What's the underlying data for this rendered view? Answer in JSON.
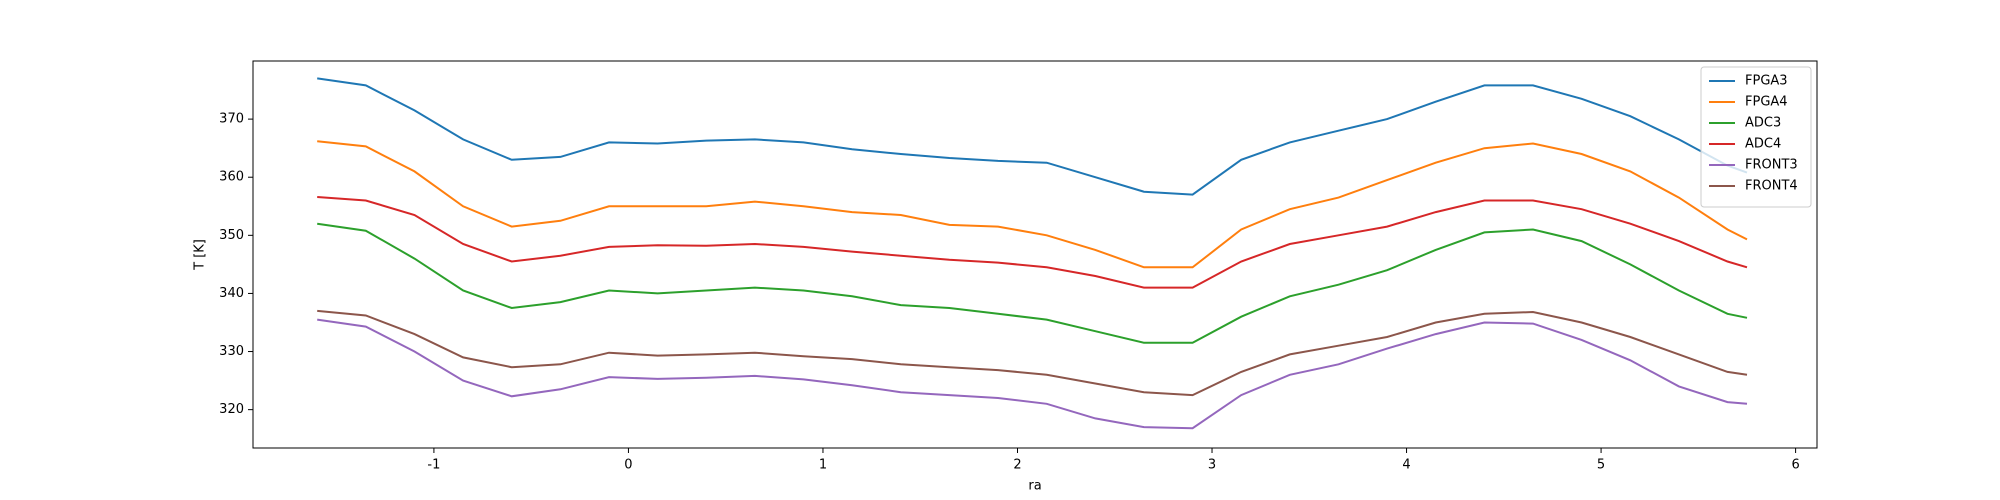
{
  "chart_data": {
    "type": "line",
    "xlabel": "ra",
    "ylabel": "T [K]",
    "x": [
      -1.6,
      -1.35,
      -1.1,
      -0.85,
      -0.6,
      -0.35,
      -0.1,
      0.15,
      0.4,
      0.65,
      0.9,
      1.15,
      1.4,
      1.65,
      1.9,
      2.15,
      2.4,
      2.65,
      2.9,
      3.15,
      3.4,
      3.65,
      3.9,
      4.15,
      4.4,
      4.65,
      4.9,
      5.15,
      5.4,
      5.65,
      5.75
    ],
    "series": [
      {
        "name": "FPGA3",
        "color": "#1f77b4",
        "values": [
          377,
          375.8,
          371.5,
          366.5,
          363,
          363.5,
          366,
          365.8,
          366.3,
          366.5,
          366,
          364.8,
          364,
          363.3,
          362.8,
          362.5,
          360,
          357.5,
          357,
          363,
          366,
          368,
          370,
          373,
          375.8,
          375.8,
          373.5,
          370.5,
          366.5,
          362,
          360.8
        ]
      },
      {
        "name": "FPGA4",
        "color": "#ff7f0e",
        "values": [
          366.2,
          365.3,
          361,
          355,
          351.5,
          352.5,
          355,
          355,
          355,
          355.8,
          355,
          354,
          353.5,
          351.8,
          351.5,
          350,
          347.5,
          344.5,
          344.5,
          351,
          354.5,
          356.5,
          359.5,
          362.5,
          365,
          365.8,
          364,
          361,
          356.5,
          351,
          349.3
        ]
      },
      {
        "name": "ADC3",
        "color": "#2ca02c",
        "values": [
          352,
          350.8,
          346,
          340.5,
          337.5,
          338.5,
          340.5,
          340,
          340.5,
          341,
          340.5,
          339.5,
          338,
          337.5,
          336.5,
          335.5,
          333.5,
          331.5,
          331.5,
          336,
          339.5,
          341.5,
          344,
          347.5,
          350.5,
          351,
          349,
          345,
          340.5,
          336.5,
          335.8
        ]
      },
      {
        "name": "ADC4",
        "color": "#d62728",
        "values": [
          356.6,
          356,
          353.5,
          348.5,
          345.5,
          346.5,
          348,
          348.3,
          348.2,
          348.5,
          348,
          347.2,
          346.5,
          345.8,
          345.3,
          344.5,
          343,
          341,
          341,
          345.5,
          348.5,
          350,
          351.5,
          354,
          356,
          356,
          354.5,
          352,
          349,
          345.5,
          344.5
        ]
      },
      {
        "name": "FRONT3",
        "color": "#9467bd",
        "values": [
          335.5,
          334.3,
          330,
          325,
          322.3,
          323.5,
          325.6,
          325.3,
          325.5,
          325.8,
          325.2,
          324.2,
          323,
          322.5,
          322,
          321,
          318.5,
          317,
          316.8,
          322.5,
          326,
          327.8,
          330.5,
          333,
          335,
          334.8,
          332,
          328.5,
          324,
          321.3,
          321
        ]
      },
      {
        "name": "FRONT4",
        "color": "#8c564b",
        "values": [
          337,
          336.2,
          333,
          329,
          327.3,
          327.8,
          329.8,
          329.3,
          329.5,
          329.8,
          329.2,
          328.7,
          327.8,
          327.3,
          326.8,
          326,
          324.5,
          323,
          322.5,
          326.5,
          329.5,
          331,
          332.5,
          335,
          336.5,
          336.8,
          335,
          332.5,
          329.5,
          326.5,
          326
        ]
      }
    ],
    "xlim": [
      -1.93,
      6.11
    ],
    "ylim": [
      313.4,
      380
    ],
    "xticks": [
      -1,
      0,
      1,
      2,
      3,
      4,
      5,
      6
    ],
    "yticks": [
      320,
      330,
      340,
      350,
      360,
      370
    ],
    "legend": "upper right"
  }
}
